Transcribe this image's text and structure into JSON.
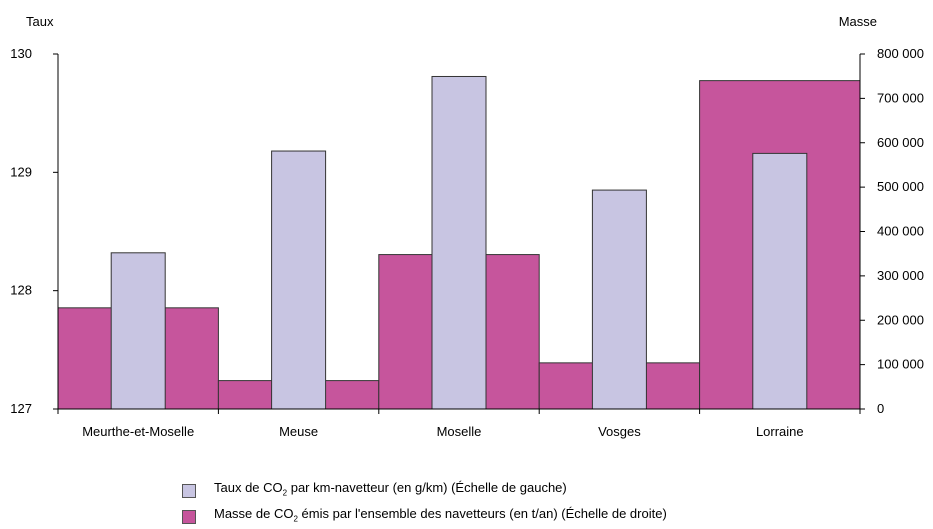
{
  "chart_data": {
    "type": "bar",
    "categories": [
      "Meurthe-et-Moselle",
      "Meuse",
      "Moselle",
      "Vosges",
      "Lorraine"
    ],
    "series": [
      {
        "name": "Taux de CO2 par km-navetteur (en g/km) (Échelle de gauche)",
        "axis": "left",
        "values": [
          128.32,
          129.18,
          129.81,
          128.85,
          129.16
        ]
      },
      {
        "name": "Masse de CO2 émis par l'ensemble des navetteurs (en t/an) (Échelle de droite)",
        "axis": "right",
        "values": [
          228000,
          64000,
          348000,
          104000,
          740000
        ]
      }
    ],
    "left_axis": {
      "label": "Taux",
      "range": [
        127,
        130
      ],
      "ticks": [
        "127",
        "128",
        "129",
        "130"
      ]
    },
    "right_axis": {
      "label": "Masse",
      "range": [
        0,
        800000
      ],
      "ticks": [
        "0",
        "100 000",
        "200 000",
        "300 000",
        "400 000",
        "500 000",
        "600 000",
        "700 000",
        "800 000"
      ]
    },
    "colors": {
      "taux": "#c8c5e2",
      "masse": "#c6559c",
      "outline": "#333333"
    },
    "grid": false,
    "legend_position": "bottom"
  },
  "legend": {
    "taux": {
      "pre": "Taux de CO",
      "sub": "2",
      "post": " par km-navetteur (en g/km) (Échelle de gauche)"
    },
    "masse": {
      "pre": "Masse de CO",
      "sub": "2",
      "post": " émis par l'ensemble des navetteurs (en t/an) (Échelle de droite)"
    }
  }
}
